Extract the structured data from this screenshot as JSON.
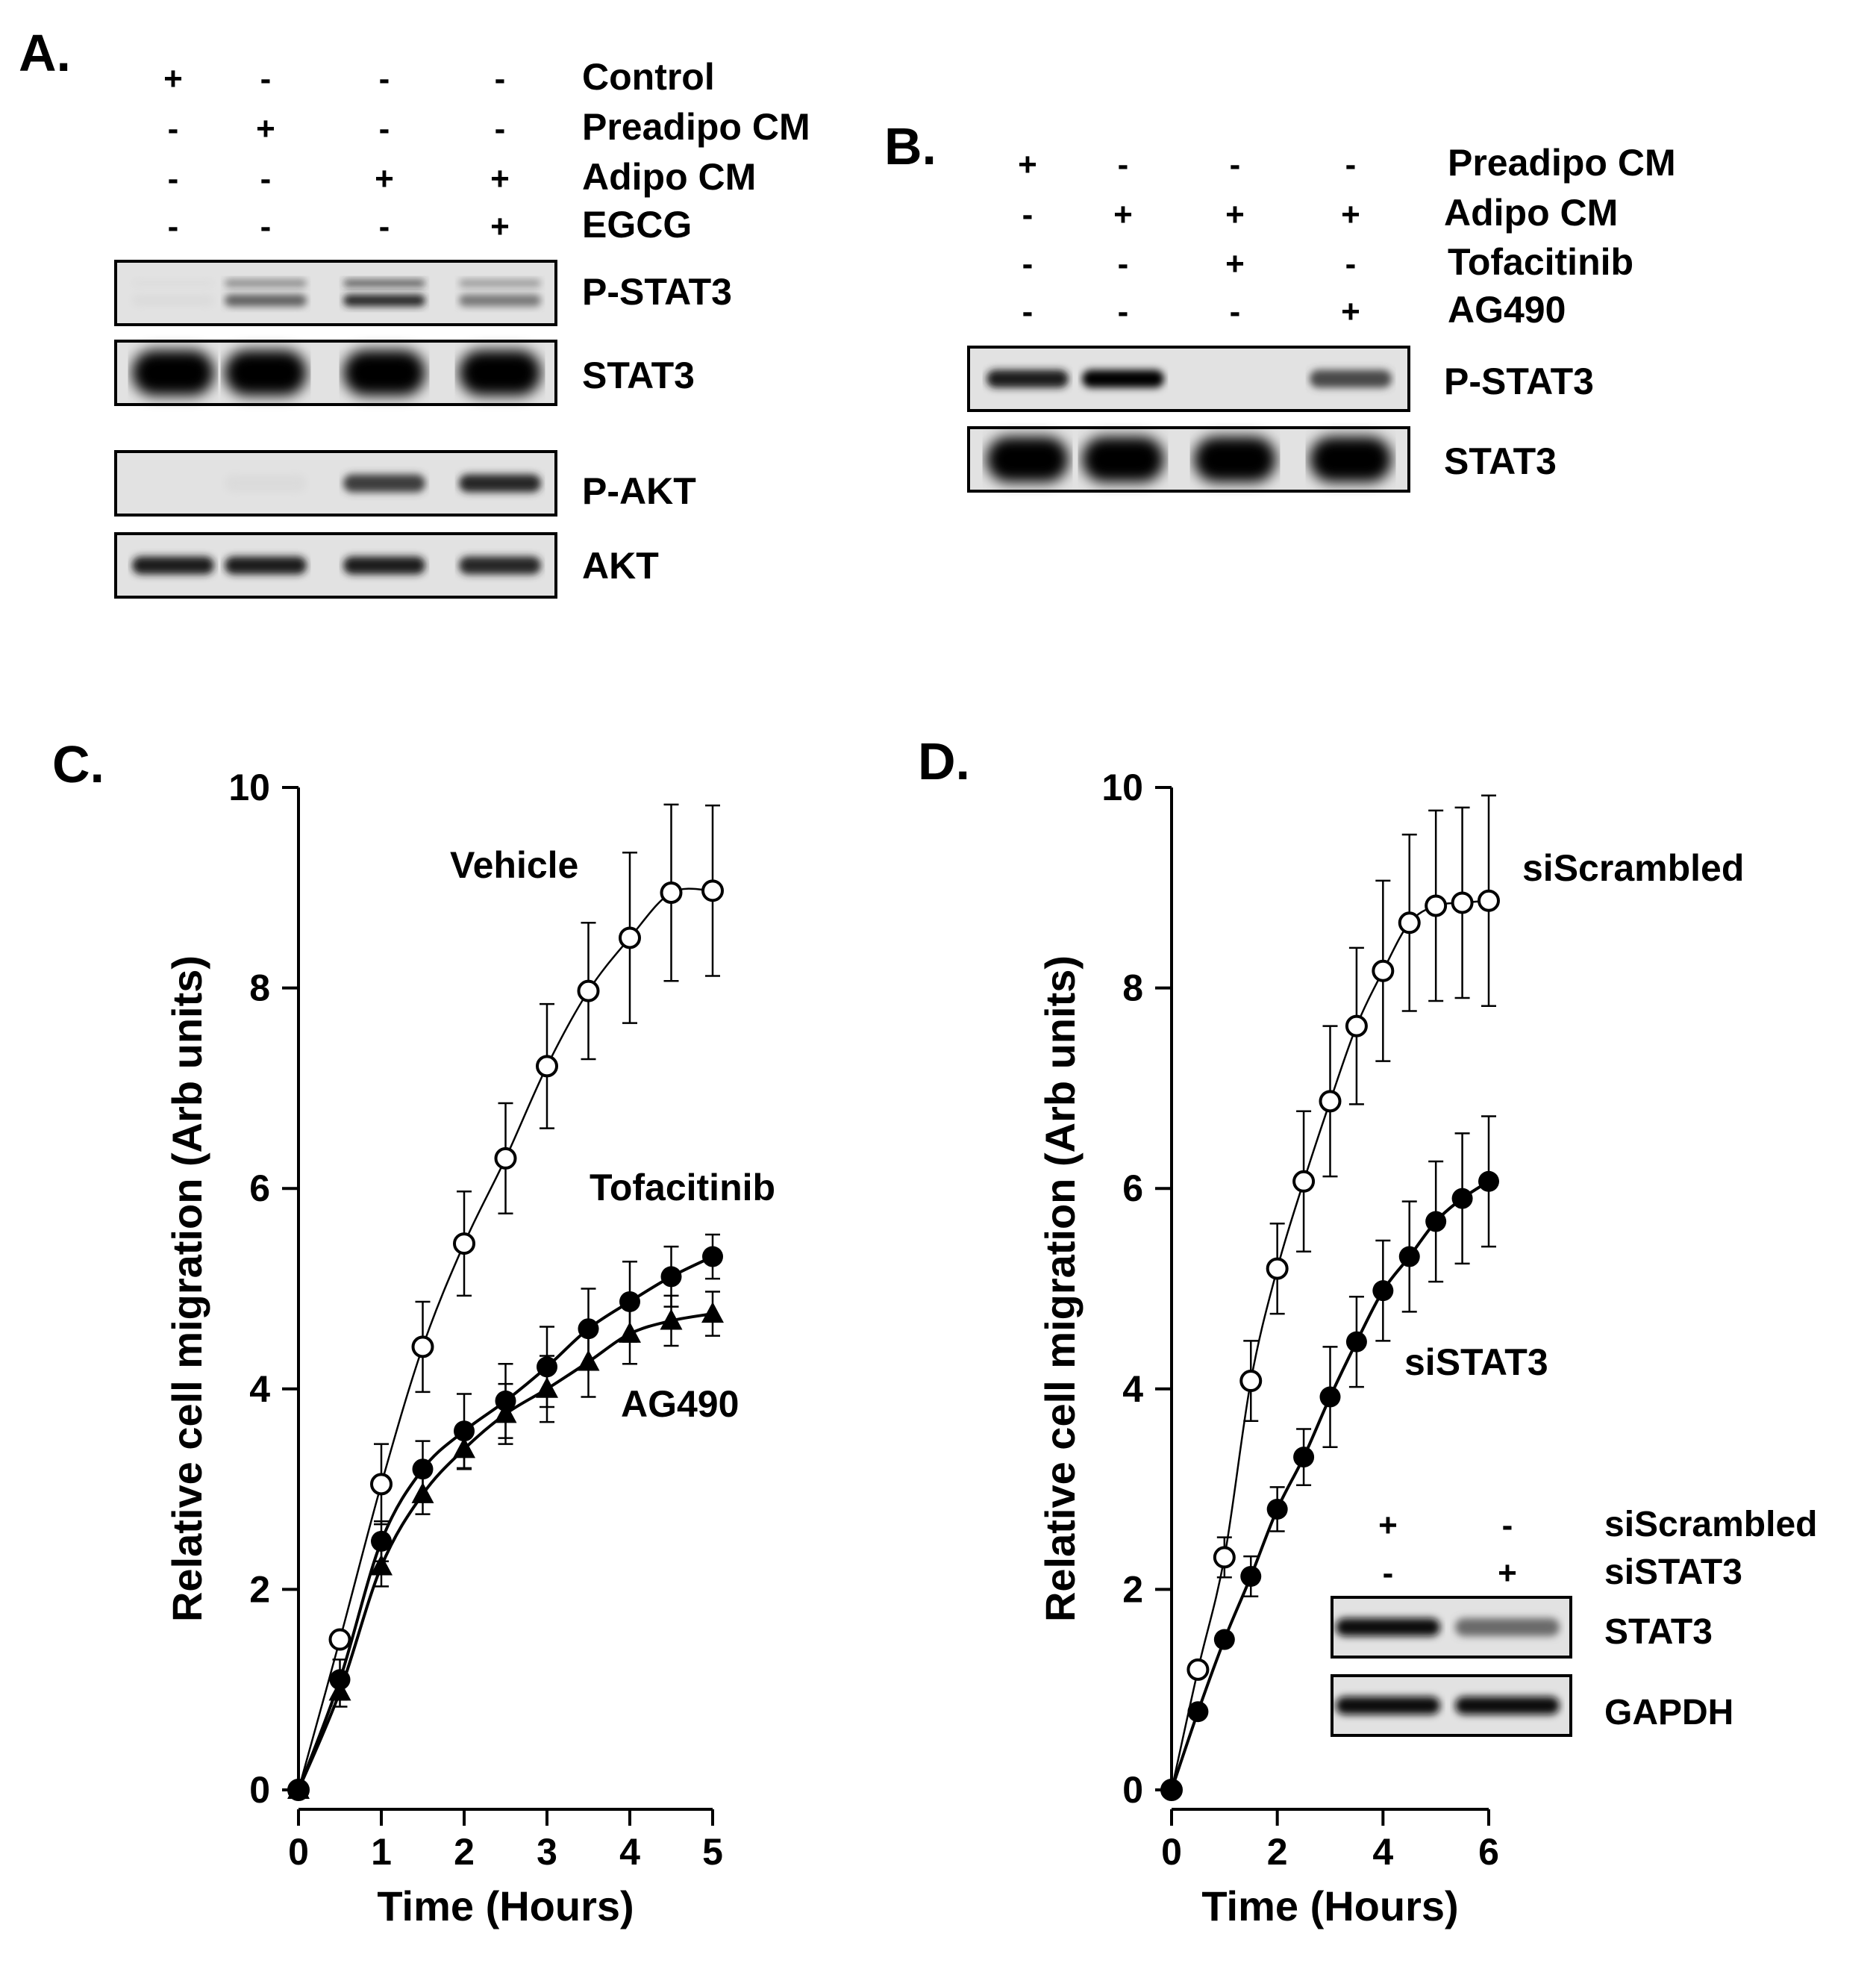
{
  "panel_a": {
    "letter": "A.",
    "conditions": [
      {
        "label": "Control",
        "signs": [
          "+",
          "-",
          "-",
          "-"
        ]
      },
      {
        "label": "Preadipo CM",
        "signs": [
          "-",
          "+",
          "-",
          "-"
        ]
      },
      {
        "label": "Adipo CM",
        "signs": [
          "-",
          "-",
          "+",
          "+"
        ]
      },
      {
        "label": "EGCG",
        "signs": [
          "-",
          "-",
          "-",
          "+"
        ]
      }
    ],
    "blots": [
      {
        "label": "P-STAT3",
        "intensities": [
          0.05,
          0.6,
          0.85,
          0.5
        ],
        "style": "double"
      },
      {
        "label": "STAT3",
        "intensities": [
          1,
          1,
          1,
          1
        ],
        "style": "thick"
      },
      {
        "label": "P-AKT",
        "intensities": [
          0.02,
          0.05,
          0.75,
          0.85
        ],
        "style": "single"
      },
      {
        "label": "AKT",
        "intensities": [
          0.9,
          0.9,
          0.9,
          0.85
        ],
        "style": "single"
      }
    ]
  },
  "panel_b": {
    "letter": "B.",
    "conditions": [
      {
        "label": "Preadipo CM",
        "signs": [
          "+",
          "-",
          "-",
          "-"
        ]
      },
      {
        "label": "Adipo CM",
        "signs": [
          "-",
          "+",
          "+",
          "+"
        ]
      },
      {
        "label": "Tofacitinib",
        "signs": [
          "-",
          "-",
          "+",
          "-"
        ]
      },
      {
        "label": "AG490",
        "signs": [
          "-",
          "-",
          "-",
          "+"
        ]
      }
    ],
    "blots": [
      {
        "label": "P-STAT3",
        "intensities": [
          0.9,
          1.0,
          0.0,
          0.7
        ],
        "style": "single"
      },
      {
        "label": "STAT3",
        "intensities": [
          1,
          1,
          1,
          1
        ],
        "style": "thick"
      }
    ]
  },
  "panel_c": {
    "letter": "C."
  },
  "panel_d": {
    "letter": "D.",
    "inset": {
      "conditions": [
        {
          "label": "siScrambled",
          "signs": [
            "+",
            "-"
          ]
        },
        {
          "label": "siSTAT3",
          "signs": [
            "-",
            "+"
          ]
        }
      ],
      "blots": [
        {
          "label": "STAT3",
          "intensities": [
            0.95,
            0.55
          ],
          "style": "single"
        },
        {
          "label": "GAPDH",
          "intensities": [
            0.95,
            0.95
          ],
          "style": "single"
        }
      ]
    }
  },
  "chart_data": [
    {
      "type": "line",
      "panel": "C",
      "xlabel": "Time (Hours)",
      "ylabel": "Relative cell migration (Arb units)",
      "xlim": [
        0,
        5
      ],
      "ylim": [
        0,
        10
      ],
      "xticks": [
        0,
        1,
        2,
        3,
        4,
        5
      ],
      "yticks": [
        0,
        2,
        4,
        6,
        8,
        10
      ],
      "series": [
        {
          "name": "Vehicle",
          "marker": "open-circle",
          "x": [
            0,
            0.5,
            1,
            1.5,
            2,
            2.5,
            3,
            3.5,
            4,
            4.5,
            5
          ],
          "y": [
            0,
            1.5,
            3.05,
            4.42,
            5.45,
            6.3,
            7.22,
            7.97,
            8.5,
            8.95,
            8.97
          ],
          "err": [
            0,
            0,
            0.4,
            0.45,
            0.52,
            0.55,
            0.62,
            0.68,
            0.85,
            0.88,
            0.85
          ]
        },
        {
          "name": "Tofacitinib",
          "marker": "filled-circle",
          "x": [
            0,
            0.5,
            1,
            1.5,
            2,
            2.5,
            3,
            3.5,
            4,
            4.5,
            5
          ],
          "y": [
            0,
            1.1,
            2.48,
            3.2,
            3.58,
            3.88,
            4.22,
            4.6,
            4.87,
            5.12,
            5.32
          ],
          "err": [
            0,
            0.2,
            0.2,
            0.28,
            0.37,
            0.37,
            0.4,
            0.4,
            0.4,
            0.3,
            0.22
          ]
        },
        {
          "name": "AG490",
          "marker": "filled-triangle",
          "x": [
            0,
            0.5,
            1,
            1.5,
            2,
            2.5,
            3,
            3.5,
            4,
            4.5,
            5
          ],
          "y": [
            0,
            0.98,
            2.23,
            2.95,
            3.4,
            3.75,
            4.0,
            4.27,
            4.55,
            4.68,
            4.75
          ],
          "err": [
            0,
            0.15,
            0.2,
            0.2,
            0.2,
            0.3,
            0.33,
            0.35,
            0.3,
            0.25,
            0.22
          ]
        }
      ]
    },
    {
      "type": "line",
      "panel": "D",
      "xlabel": "Time (Hours)",
      "ylabel": "Relative cell migration (Arb units)",
      "xlim": [
        0,
        6
      ],
      "ylim": [
        0,
        10
      ],
      "xticks": [
        0,
        2,
        4,
        6
      ],
      "yticks": [
        0,
        2,
        4,
        6,
        8,
        10
      ],
      "series": [
        {
          "name": "siScrambled",
          "marker": "open-circle",
          "x": [
            0,
            0.5,
            1,
            1.5,
            2,
            2.5,
            3,
            3.5,
            4,
            4.5,
            5,
            5.5,
            6
          ],
          "y": [
            0,
            1.2,
            2.32,
            4.08,
            5.2,
            6.07,
            6.87,
            7.62,
            8.17,
            8.65,
            8.82,
            8.85,
            8.87
          ],
          "err": [
            0,
            0,
            0.2,
            0.4,
            0.45,
            0.7,
            0.75,
            0.78,
            0.9,
            0.88,
            0.95,
            0.95,
            1.05
          ]
        },
        {
          "name": "siSTAT3",
          "marker": "filled-circle",
          "x": [
            0,
            0.5,
            1,
            1.5,
            2,
            2.5,
            3,
            3.5,
            4,
            4.5,
            5,
            5.5,
            6
          ],
          "y": [
            0,
            0.78,
            1.5,
            2.13,
            2.8,
            3.32,
            3.92,
            4.47,
            4.98,
            5.32,
            5.67,
            5.9,
            6.07
          ],
          "err": [
            0,
            0,
            0,
            0.2,
            0.22,
            0.28,
            0.5,
            0.45,
            0.5,
            0.55,
            0.6,
            0.65,
            0.65
          ]
        }
      ]
    }
  ]
}
